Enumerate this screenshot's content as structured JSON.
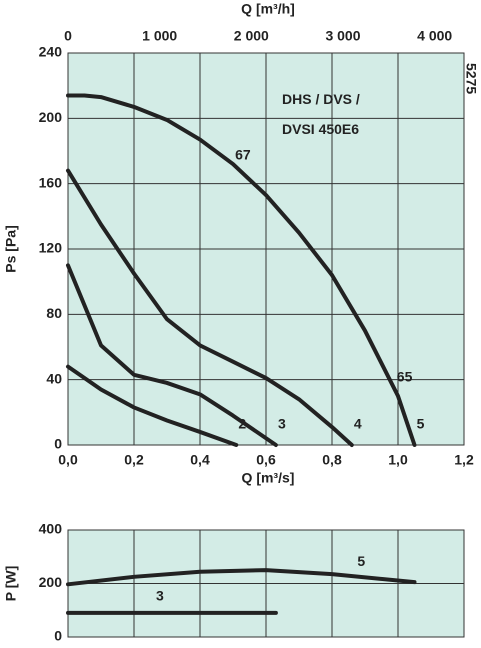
{
  "chart_data": [
    {
      "type": "line",
      "title": "DHS / DVS / DVSI 450E6",
      "code": "5275",
      "x_label": "Q [m³/s]",
      "x2_label": "Q [m³/h]",
      "y_label": "Ps [Pa]",
      "xlim": [
        0,
        1.2
      ],
      "xticks": [
        {
          "value": 0,
          "label": "0,0"
        },
        {
          "value": 0.2,
          "label": "0,2"
        },
        {
          "value": 0.4,
          "label": "0,4"
        },
        {
          "value": 0.6,
          "label": "0,6"
        },
        {
          "value": 0.8,
          "label": "0,8"
        },
        {
          "value": 1.0,
          "label": "1,0"
        },
        {
          "value": 1.2,
          "label": "1,2"
        }
      ],
      "x2lim": [
        0,
        4320
      ],
      "x2ticks": [
        0,
        {
          "value": 1000,
          "label": "1 000"
        },
        {
          "value": 2000,
          "label": "2 000"
        },
        {
          "value": 3000,
          "label": "3 000"
        },
        {
          "value": 4000,
          "label": "4 000"
        }
      ],
      "ylim": [
        0,
        240
      ],
      "yticks": [
        0,
        40,
        80,
        120,
        160,
        200,
        240
      ],
      "grid": true,
      "background": "#d3ece6",
      "series": [
        {
          "name": "2",
          "color": "#222222",
          "x": [
            0,
            0.1,
            0.2,
            0.3,
            0.4,
            0.51
          ],
          "values": [
            48,
            34,
            23,
            15,
            8,
            0
          ]
        },
        {
          "name": "3",
          "color": "#222222",
          "x": [
            0,
            0.1,
            0.2,
            0.3,
            0.4,
            0.5,
            0.63
          ],
          "values": [
            110,
            61,
            43,
            38,
            31,
            18,
            0
          ]
        },
        {
          "name": "4",
          "color": "#222222",
          "x": [
            0,
            0.1,
            0.2,
            0.3,
            0.4,
            0.5,
            0.6,
            0.7,
            0.8,
            0.86
          ],
          "values": [
            168,
            135,
            105,
            77,
            61,
            51,
            41,
            28,
            11,
            0
          ]
        },
        {
          "name": "5",
          "color": "#222222",
          "x": [
            0,
            0.05,
            0.1,
            0.2,
            0.3,
            0.4,
            0.5,
            0.6,
            0.7,
            0.8,
            0.9,
            1.0,
            1.05
          ],
          "values": [
            214,
            214,
            213,
            207,
            199,
            187,
            172,
            153,
            130,
            104,
            70,
            30,
            0
          ]
        }
      ],
      "annotations": [
        {
          "text": "67",
          "x": 0.53,
          "y": 177
        },
        {
          "text": "65",
          "x": 1.02,
          "y": 41
        }
      ]
    },
    {
      "type": "line",
      "y_label": "P [W]",
      "xlim": [
        0,
        1.2
      ],
      "xticks": [
        0,
        0.2,
        0.4,
        0.6,
        0.8,
        1.0,
        1.2
      ],
      "ylim": [
        0,
        400
      ],
      "yticks": [
        0,
        200,
        400
      ],
      "grid": true,
      "background": "#d3ece6",
      "series": [
        {
          "name": "5",
          "color": "#222222",
          "x": [
            0,
            0.2,
            0.4,
            0.6,
            0.8,
            1.05
          ],
          "values": [
            197,
            225,
            244,
            250,
            235,
            205
          ]
        },
        {
          "name": "3",
          "color": "#222222",
          "x": [
            0,
            0.63
          ],
          "values": [
            90,
            90
          ]
        }
      ]
    }
  ]
}
